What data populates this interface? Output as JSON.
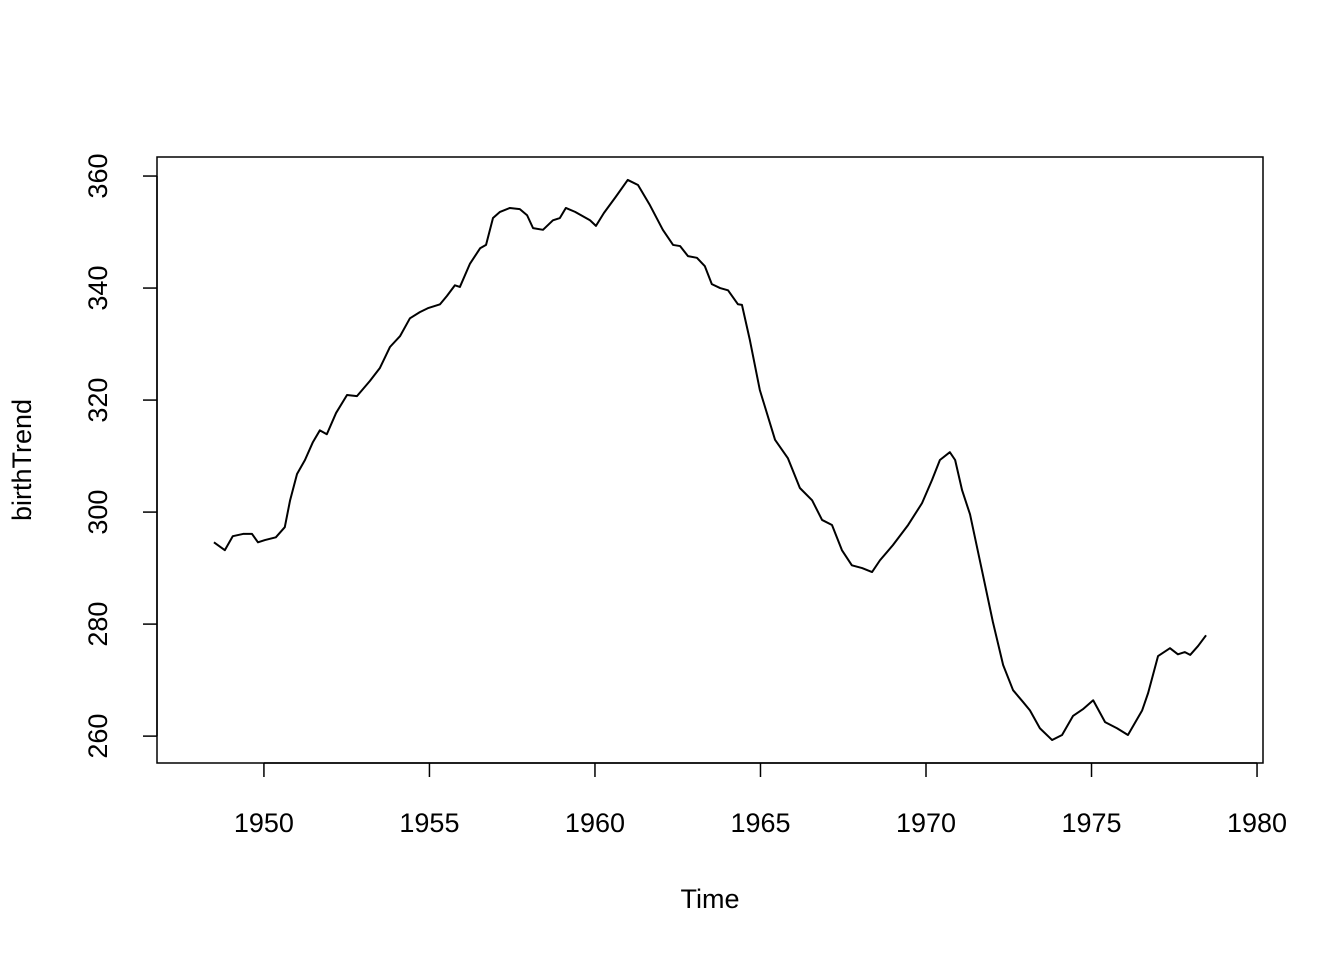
{
  "chart_data": {
    "type": "line",
    "xlabel": "Time",
    "ylabel": "birthTrend",
    "x": [
      1948.49,
      1948.82,
      1949.06,
      1949.37,
      1949.64,
      1949.82,
      1950.03,
      1950.36,
      1950.63,
      1950.79,
      1951.0,
      1951.24,
      1951.48,
      1951.69,
      1951.9,
      1952.18,
      1952.51,
      1952.81,
      1953.2,
      1953.5,
      1953.81,
      1954.11,
      1954.41,
      1954.71,
      1954.95,
      1955.32,
      1955.53,
      1955.77,
      1955.92,
      1956.22,
      1956.53,
      1956.71,
      1956.92,
      1957.13,
      1957.43,
      1957.73,
      1957.95,
      1958.13,
      1958.43,
      1958.73,
      1958.94,
      1959.12,
      1959.4,
      1959.85,
      1960.03,
      1960.27,
      1960.63,
      1960.99,
      1961.3,
      1961.66,
      1962.05,
      1962.36,
      1962.57,
      1962.81,
      1963.08,
      1963.32,
      1963.53,
      1963.78,
      1964.02,
      1964.32,
      1964.44,
      1964.68,
      1964.98,
      1965.44,
      1965.83,
      1966.19,
      1966.56,
      1966.86,
      1967.16,
      1967.46,
      1967.76,
      1968.07,
      1968.37,
      1968.61,
      1969.0,
      1969.46,
      1969.88,
      1970.18,
      1970.42,
      1970.72,
      1970.88,
      1971.09,
      1971.33,
      1971.69,
      1972.02,
      1972.33,
      1972.63,
      1972.93,
      1973.14,
      1973.44,
      1973.81,
      1974.11,
      1974.44,
      1974.74,
      1975.05,
      1975.41,
      1975.77,
      1976.1,
      1976.53,
      1976.71,
      1977.01,
      1977.37,
      1977.61,
      1977.82,
      1977.98,
      1978.22,
      1978.46
    ],
    "y": [
      294.6,
      293.2,
      295.7,
      296.1,
      296.1,
      294.6,
      295.0,
      295.5,
      297.3,
      302.1,
      306.8,
      309.3,
      312.5,
      314.6,
      313.9,
      317.7,
      320.9,
      320.7,
      323.4,
      325.7,
      329.5,
      331.4,
      334.6,
      335.7,
      336.4,
      337.1,
      338.6,
      340.5,
      340.2,
      344.3,
      347.1,
      347.7,
      352.5,
      353.6,
      354.3,
      354.1,
      353.0,
      350.7,
      350.4,
      352.1,
      352.5,
      354.3,
      353.6,
      352.1,
      351.1,
      353.4,
      356.3,
      359.3,
      358.4,
      354.8,
      350.4,
      347.7,
      347.5,
      345.7,
      345.4,
      343.9,
      340.7,
      340.0,
      339.6,
      337.1,
      337.0,
      330.7,
      321.8,
      312.9,
      309.6,
      304.3,
      302.1,
      298.6,
      297.7,
      293.2,
      290.5,
      290.0,
      289.3,
      291.4,
      294.1,
      297.7,
      301.6,
      305.7,
      309.3,
      310.7,
      309.3,
      303.9,
      299.6,
      289.6,
      280.4,
      272.7,
      268.2,
      266.1,
      264.6,
      261.4,
      259.3,
      260.2,
      263.6,
      264.8,
      266.4,
      262.5,
      261.4,
      260.2,
      264.6,
      267.7,
      274.3,
      275.7,
      274.6,
      275.0,
      274.5,
      276.1,
      278.0
    ],
    "color": "#000000",
    "xlim": [
      1946.77,
      1980.18
    ],
    "xticks": [
      1950,
      1955,
      1960,
      1965,
      1970,
      1975,
      1980
    ],
    "ylim": [
      255.2,
      363.4
    ],
    "yticks": [
      260,
      280,
      300,
      320,
      340,
      360
    ],
    "grid": false
  }
}
